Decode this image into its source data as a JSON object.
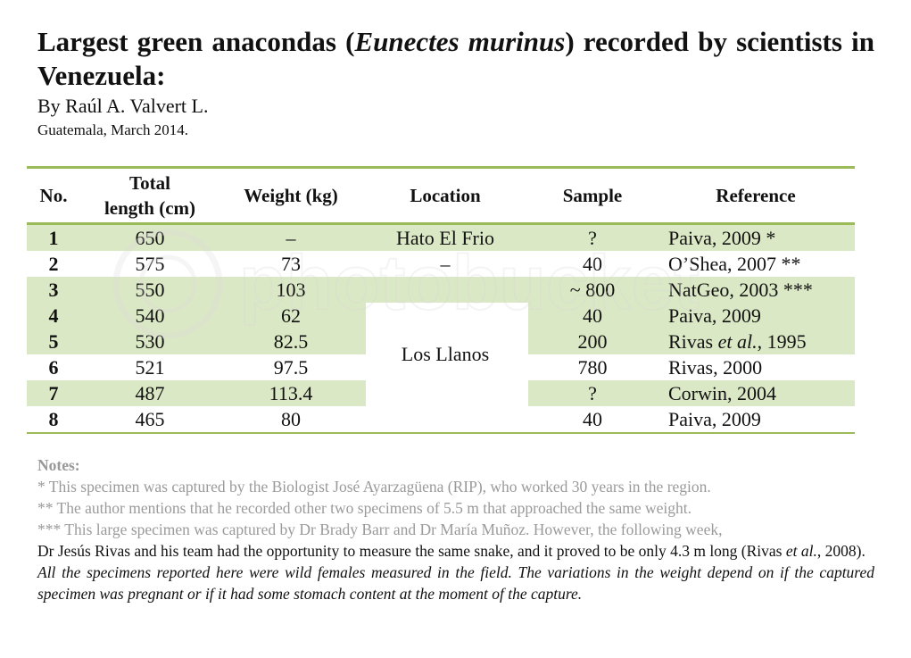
{
  "title": {
    "part1": "Largest green anacondas (",
    "species": "Eunectes murinus",
    "part2": ") recorded by scientists in Venezuela:"
  },
  "byline": "By Raúl A. Valvert L.",
  "dateline": "Guatemala, March 2014.",
  "table": {
    "headers": {
      "no": "No.",
      "length_line1": "Total",
      "length_line2": "length (cm)",
      "weight": "Weight (kg)",
      "location": "Location",
      "sample": "Sample",
      "reference": "Reference"
    },
    "rows": [
      {
        "no": "1",
        "length": "650",
        "weight": "–",
        "sample": "?",
        "reference": "Paiva, 2009 *"
      },
      {
        "no": "2",
        "length": "575",
        "weight": "73",
        "sample": "40",
        "reference": "O’Shea, 2007 **"
      },
      {
        "no": "3",
        "length": "550",
        "weight": "103",
        "sample": "~ 800",
        "reference": "NatGeo, 2003 ***"
      },
      {
        "no": "4",
        "length": "540",
        "weight": "62",
        "sample": "40",
        "reference": "Paiva, 2009"
      },
      {
        "no": "5",
        "length": "530",
        "weight": "82.5",
        "sample": "200",
        "reference_pre": "Rivas ",
        "reference_it": "et al.",
        "reference_post": ", 1995"
      },
      {
        "no": "6",
        "length": "521",
        "weight": "97.5",
        "sample": "780",
        "reference": "Rivas, 2000"
      },
      {
        "no": "7",
        "length": "487",
        "weight": "113.4",
        "sample": "?",
        "reference": "Corwin, 2004"
      },
      {
        "no": "8",
        "length": "465",
        "weight": "80",
        "sample": "40",
        "reference": "Paiva, 2009"
      }
    ],
    "locations": {
      "row1": "Hato El Frio",
      "row2": "–",
      "merged": "Los Llanos"
    }
  },
  "notes": {
    "heading": "Notes:",
    "note1": "* This specimen was captured by the Biologist José Ayarzagüena (RIP), who worked 30 years in the region.",
    "note2": "** The author mentions that he recorded other two specimens of 5.5 m that approached the same weight.",
    "note3_grey": "*** This large specimen was captured by Dr Brady Barr and Dr María Muñoz. However, the following week,",
    "note3_dark_pre": "Dr Jesús Rivas and his team had the opportunity to measure the same snake, and it proved to be only 4.3 m long (Rivas ",
    "note3_dark_it": "et al.",
    "note3_dark_post": ", 2008).",
    "closing": "All the specimens reported here were wild females measured in the field. The variations in the weight depend on if the captured specimen was pregnant or if it had some stomach content at the moment of the capture."
  },
  "watermark": "photobucket",
  "colors": {
    "accent_rule": "#9bbb59",
    "row_shade": "#dbe8c5",
    "note_grey": "#9a9a9a"
  }
}
